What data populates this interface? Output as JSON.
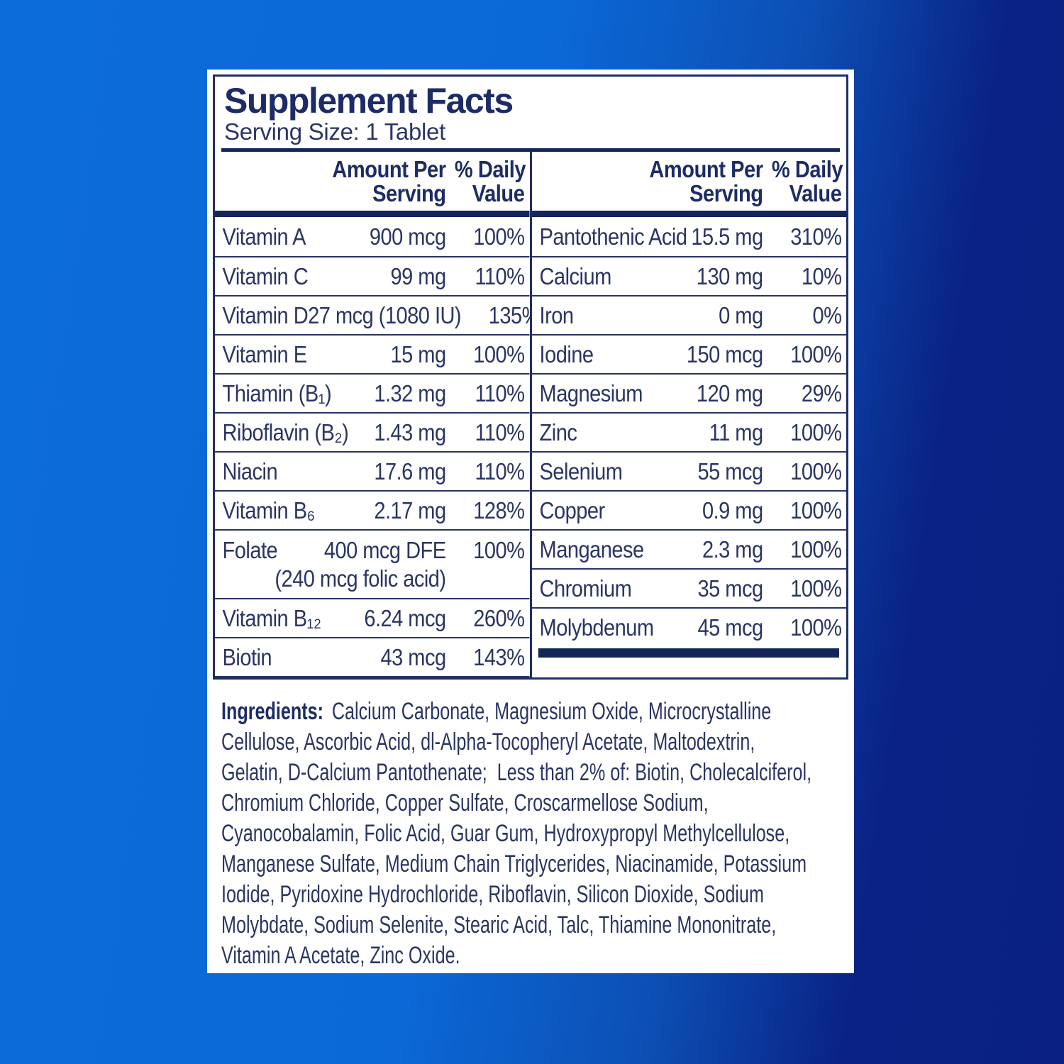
{
  "label": {
    "title": "Supplement Facts",
    "serving_size": "Serving Size: 1 Tablet",
    "header": {
      "amount_line1": "Amount Per",
      "amount_line2": "Serving",
      "dv_line1": "% Daily",
      "dv_line2": "Value"
    },
    "columns": {
      "left": [
        {
          "name": "Vitamin A",
          "amount": "900 mcg",
          "dv": "100%"
        },
        {
          "name": "Vitamin C",
          "amount": "99 mg",
          "dv": "110%"
        },
        {
          "name": "Vitamin D",
          "amount": "27 mcg (1080 IU)",
          "dv": "135%"
        },
        {
          "name": "Vitamin E",
          "amount": "15 mg",
          "dv": "100%"
        },
        {
          "name": "Thiamin (B₁)",
          "amount": "1.32 mg",
          "dv": "110%"
        },
        {
          "name": "Riboflavin (B₂)",
          "amount": "1.43 mg",
          "dv": "110%"
        },
        {
          "name": "Niacin",
          "amount": "17.6 mg",
          "dv": "110%"
        },
        {
          "name": "Vitamin B₆",
          "amount": "2.17 mg",
          "dv": "128%"
        },
        {
          "name": "Folate",
          "amount": "400 mcg DFE",
          "amount_note": "(240 mcg folic acid)",
          "dv": "100%"
        },
        {
          "name": "Vitamin B₁₂",
          "amount": "6.24 mcg",
          "dv": "260%"
        },
        {
          "name": "Biotin",
          "amount": "43 mcg",
          "dv": "143%"
        }
      ],
      "right": [
        {
          "name": "Pantothenic Acid",
          "amount": "15.5 mg",
          "dv": "310%"
        },
        {
          "name": "Calcium",
          "amount": "130 mg",
          "dv": "10%"
        },
        {
          "name": "Iron",
          "amount": "0 mg",
          "dv": "0%"
        },
        {
          "name": "Iodine",
          "amount": "150 mcg",
          "dv": "100%"
        },
        {
          "name": "Magnesium",
          "amount": "120 mg",
          "dv": "29%"
        },
        {
          "name": "Zinc",
          "amount": "11 mg",
          "dv": "100%"
        },
        {
          "name": "Selenium",
          "amount": "55 mcg",
          "dv": "100%"
        },
        {
          "name": "Copper",
          "amount": "0.9 mg",
          "dv": "100%"
        },
        {
          "name": "Manganese",
          "amount": "2.3 mg",
          "dv": "100%"
        },
        {
          "name": "Chromium",
          "amount": "35 mcg",
          "dv": "100%"
        },
        {
          "name": "Molybdenum",
          "amount": "45 mcg",
          "dv": "100%"
        }
      ]
    },
    "ingredients": {
      "label": "Ingredients:",
      "lines": [
        "Calcium Carbonate, Magnesium Oxide, Microcrystalline",
        "Cellulose, Ascorbic Acid, dl-Alpha-Tocopheryl Acetate, Maltodextrin,",
        "Gelatin, D-Calcium Pantothenate;  Less than 2% of: Biotin, Cholecalciferol,",
        "Chromium Chloride, Copper Sulfate, Croscarmellose Sodium,",
        "Cyanocobalamin, Folic Acid, Guar Gum, Hydroxypropyl Methylcellulose,",
        "Manganese Sulfate, Medium Chain Triglycerides, Niacinamide, Potassium",
        "Iodide, Pyridoxine Hydrochloride, Riboflavin, Silicon Dioxide, Sodium",
        "Molybdate, Sodium Selenite, Stearic Acid, Talc, Thiamine Mononitrate,",
        "Vitamin A Acetate, Zinc Oxide."
      ]
    },
    "colors": {
      "background_blue": "#0b69d7",
      "background_navy": "#0a2184",
      "panel_white": "#ffffff",
      "navy_text": "#2b3563",
      "navy_dark": "#1d2c66"
    }
  }
}
